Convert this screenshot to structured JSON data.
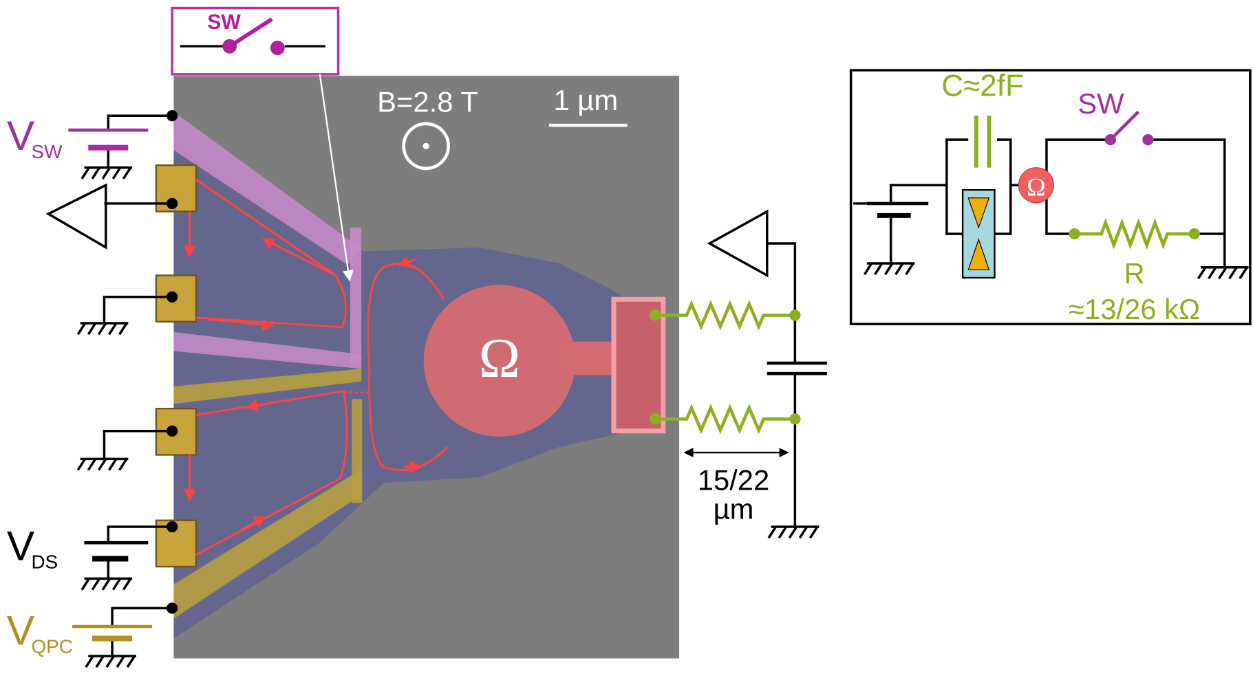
{
  "inset_switch": {
    "label": "SW"
  },
  "sample": {
    "field": "B=2.8 T",
    "scale_bar": "1 µm",
    "ohmic_symbol": "Ω"
  },
  "sources": {
    "v_sw": {
      "main": "V",
      "sub": "SW"
    },
    "v_ds": {
      "main": "V",
      "sub": "DS"
    },
    "v_qpc": {
      "main": "V",
      "sub": "QPC"
    }
  },
  "line_length": {
    "value": "15/22",
    "unit": "µm"
  },
  "circuit": {
    "capacitor": "C≈2fF",
    "switch": "SW",
    "ohmic": "Ω",
    "resistor": "R",
    "resistance": "≈13/26 kΩ"
  }
}
